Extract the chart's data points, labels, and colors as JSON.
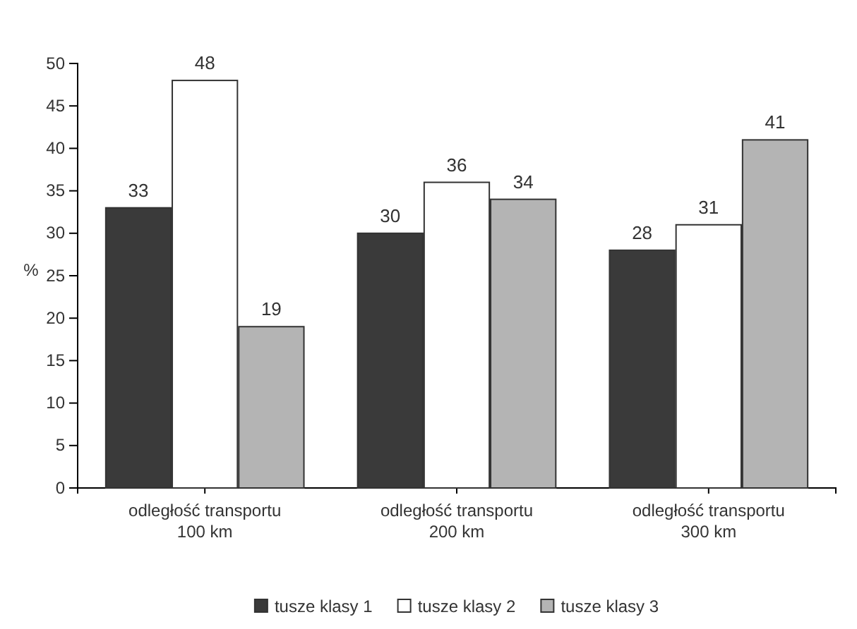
{
  "chart_data": {
    "type": "bar",
    "ylabel": "%",
    "categories": [
      "odległość transportu 100 km",
      "odległość transportu 200 km",
      "odległość transportu 300 km"
    ],
    "series": [
      {
        "name": "tusze klasy 1",
        "color": "#3a3a3a",
        "values": [
          33,
          30,
          28
        ]
      },
      {
        "name": "tusze klasy 2",
        "color": "#ffffff",
        "values": [
          48,
          36,
          31
        ]
      },
      {
        "name": "tusze klasy 3",
        "color": "#b4b4b4",
        "values": [
          19,
          34,
          41
        ]
      }
    ],
    "ylim": [
      0,
      50
    ],
    "yticks": [
      0,
      5,
      10,
      15,
      20,
      25,
      30,
      35,
      40,
      45,
      50
    ],
    "data_labels": true,
    "legend": "bottom",
    "grid": false
  }
}
